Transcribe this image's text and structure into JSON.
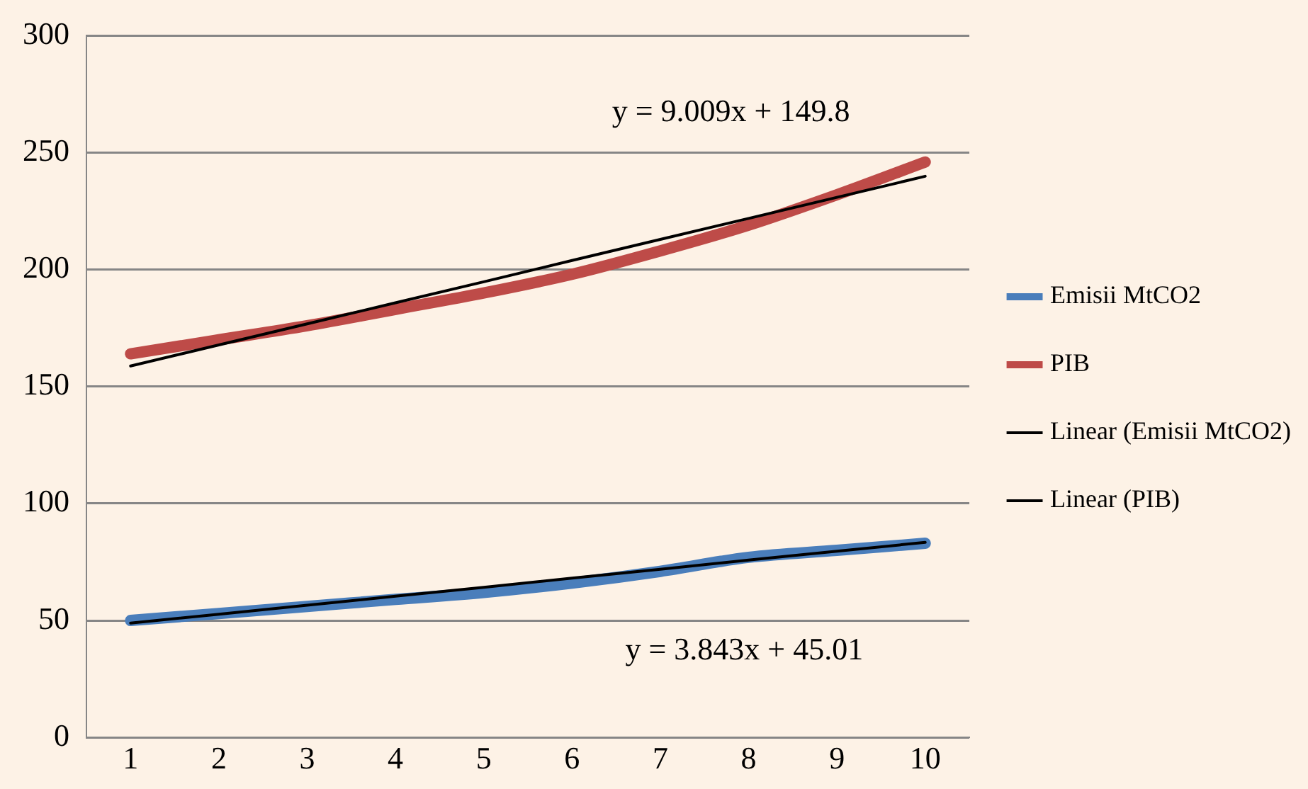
{
  "chart_data": {
    "type": "line",
    "x": [
      1,
      2,
      3,
      4,
      5,
      6,
      7,
      8,
      9,
      10
    ],
    "xlim": [
      0.5,
      10.5
    ],
    "xticks": [
      1,
      2,
      3,
      4,
      5,
      6,
      7,
      8,
      9,
      10
    ],
    "ylim": [
      0,
      300
    ],
    "yticks": [
      0,
      50,
      100,
      150,
      200,
      250,
      300
    ],
    "grid": "y",
    "legend": "right",
    "marker": "none",
    "line_style": "solid",
    "series": [
      {
        "name": "Emisii MtCO2",
        "color": "#4a7ebb",
        "values": [
          50,
          53,
          56,
          59,
          62,
          66,
          71,
          77,
          80,
          83
        ]
      },
      {
        "name": "PIB",
        "color": "#be4b48",
        "values": [
          164,
          170,
          176,
          183,
          190,
          198,
          208,
          219,
          232,
          246
        ]
      },
      {
        "name": "Linear (Emisii MtCO2)",
        "type": "line",
        "color": "#000000",
        "values": [
          48.9,
          52.7,
          56.5,
          60.4,
          64.2,
          68.1,
          71.9,
          75.8,
          79.6,
          83.4
        ]
      },
      {
        "name": "Linear (PIB)",
        "type": "line",
        "color": "#000000",
        "values": [
          158.8,
          167.8,
          176.8,
          185.8,
          194.8,
          203.9,
          212.9,
          221.9,
          230.9,
          239.9
        ]
      }
    ],
    "annotations": [
      "y = 9.009x + 149.8",
      "y = 3.843x + 45.01"
    ]
  }
}
